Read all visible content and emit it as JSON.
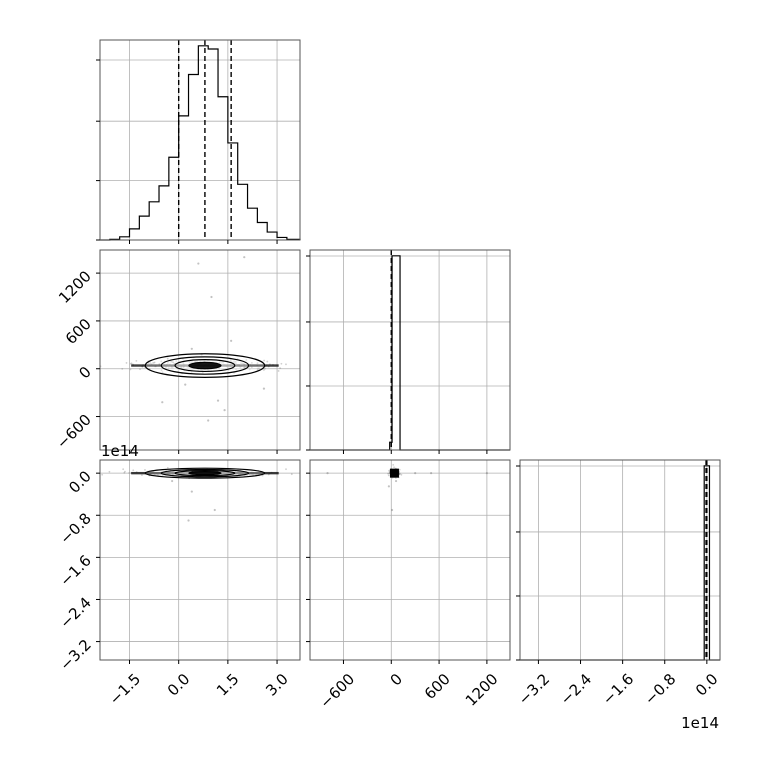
{
  "chart_data": {
    "type": "corner",
    "colors": {
      "line": "#000000",
      "grid": "#b0b0b0",
      "scatter": "#777777"
    },
    "grid": true,
    "x_ticks": {
      "col0": [
        {
          "v": -1.5,
          "label": "−1.5"
        },
        {
          "v": 0.0,
          "label": "0.0"
        },
        {
          "v": 1.5,
          "label": "1.5"
        },
        {
          "v": 3.0,
          "label": "3.0"
        }
      ],
      "col1": [
        {
          "v": -600,
          "label": "−600"
        },
        {
          "v": 0,
          "label": "0"
        },
        {
          "v": 600,
          "label": "600"
        },
        {
          "v": 1200,
          "label": "1200"
        }
      ],
      "col2": [
        {
          "v": -3.2,
          "label": "−3.2"
        },
        {
          "v": -2.4,
          "label": "−2.4"
        },
        {
          "v": -1.6,
          "label": "−1.6"
        },
        {
          "v": -0.8,
          "label": "−0.8"
        },
        {
          "v": 0.0,
          "label": "0.0"
        }
      ]
    },
    "y_ticks": {
      "row1": [
        {
          "v": -600,
          "label": "−600"
        },
        {
          "v": 0,
          "label": "0"
        },
        {
          "v": 600,
          "label": "600"
        },
        {
          "v": 1200,
          "label": "1200"
        }
      ],
      "row2": [
        {
          "v": -3.2,
          "label": "−3.2"
        },
        {
          "v": -2.4,
          "label": "−2.4"
        },
        {
          "v": -1.6,
          "label": "−1.6"
        },
        {
          "v": -0.8,
          "label": "−0.8"
        },
        {
          "v": 0.0,
          "label": "0.0"
        }
      ]
    },
    "offset_labels": {
      "row2_y": "1e14",
      "col2_x": "1e14"
    },
    "ranges": {
      "p0": [
        -2.4,
        3.7
      ],
      "p1": [
        -1020,
        1490
      ],
      "p2": [
        -3.55,
        0.25
      ]
    },
    "diag": [
      {
        "param": "p0",
        "bin_edges": [
          -2.4,
          -2.1,
          -1.8,
          -1.5,
          -1.2,
          -0.9,
          -0.6,
          -0.3,
          0.0,
          0.3,
          0.6,
          0.9,
          1.2,
          1.5,
          1.8,
          2.1,
          2.4,
          2.7,
          3.0,
          3.3,
          3.7
        ],
        "counts": [
          0,
          2,
          10,
          35,
          75,
          120,
          170,
          260,
          390,
          520,
          610,
          600,
          450,
          305,
          175,
          100,
          55,
          25,
          8,
          2
        ],
        "quantiles": [
          0.0,
          0.8,
          1.6
        ]
      },
      {
        "param": "p1",
        "bin_edges": [
          -1020,
          -20,
          10,
          110,
          1490
        ],
        "counts": [
          0,
          4,
          100,
          0
        ],
        "quantiles": [
          0
        ]
      },
      {
        "param": "p2",
        "bin_edges": [
          -3.55,
          -0.05,
          0.0,
          0.05,
          0.25
        ],
        "counts": [
          0,
          100,
          100,
          0
        ],
        "quantiles": [
          -0.015,
          0.0
        ]
      }
    ],
    "pairs": [
      {
        "x": "p0",
        "y": "p1",
        "center": [
          0.8,
          40
        ],
        "spread": [
          1.0,
          30
        ],
        "outliers": [
          [
            0.6,
            1320
          ],
          [
            1.0,
            900
          ],
          [
            2.0,
            1400
          ],
          [
            1.6,
            350
          ],
          [
            0.4,
            250
          ],
          [
            0.2,
            -200
          ],
          [
            1.2,
            -400
          ],
          [
            0.9,
            -650
          ],
          [
            -0.5,
            -420
          ],
          [
            1.4,
            -520
          ],
          [
            2.6,
            -250
          ],
          [
            0.7,
            180
          ]
        ]
      },
      {
        "x": "p0",
        "y": "p2",
        "center": [
          0.8,
          0.0
        ],
        "spread": [
          1.0,
          0.02
        ],
        "outliers": [
          [
            0.4,
            -0.35
          ],
          [
            1.1,
            -0.7
          ],
          [
            0.3,
            -0.9
          ],
          [
            1.3,
            0.05
          ],
          [
            -0.2,
            -0.15
          ]
        ]
      },
      {
        "x": "p1",
        "y": "p2",
        "center": [
          40,
          0.0
        ],
        "spread": [
          25,
          0.03
        ],
        "outliers": [
          [
            10,
            -0.7
          ],
          [
            -30,
            -0.25
          ],
          [
            60,
            -0.15
          ],
          [
            -800,
            0.0
          ],
          [
            1200,
            0.0
          ],
          [
            300,
            0.0
          ],
          [
            500,
            0.0
          ]
        ]
      }
    ]
  }
}
